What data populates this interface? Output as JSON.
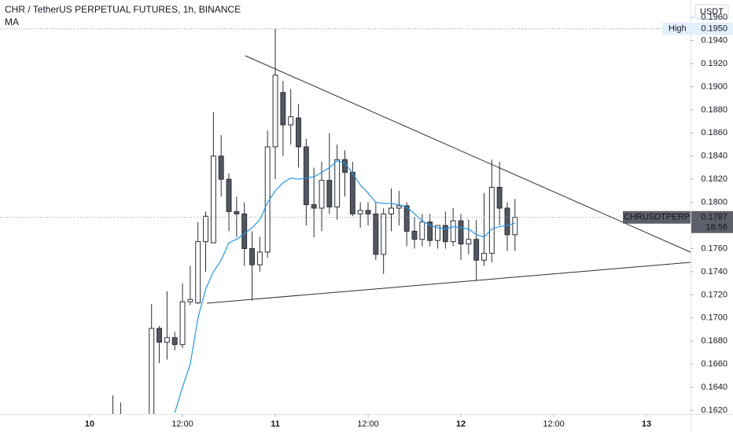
{
  "chart_data": {
    "type": "candlestick",
    "title": "CHR / TetherUS PERPETUAL FUTURES, 1h, BINANCE",
    "currency": "USDT",
    "x": [
      3,
      4,
      8,
      9,
      10,
      11,
      12,
      13,
      14,
      15,
      16,
      17,
      18,
      19,
      20,
      21,
      22,
      23,
      24,
      25,
      26,
      27,
      28,
      29,
      30,
      31,
      32,
      33,
      34,
      35,
      36,
      37,
      38,
      39,
      40,
      41,
      42,
      43,
      44,
      45,
      46,
      47,
      48,
      49,
      50,
      51,
      52,
      53,
      54,
      55
    ],
    "xlim": [
      -11.6,
      77.7
    ],
    "xticks": [
      {
        "value": 0,
        "label": "10"
      },
      {
        "value": 12,
        "label": "12:00"
      },
      {
        "value": 24,
        "label": "11"
      },
      {
        "value": 36,
        "label": "12:00"
      },
      {
        "value": 48,
        "label": "12"
      },
      {
        "value": 60,
        "label": "12:00"
      },
      {
        "value": 72,
        "label": "13"
      }
    ],
    "ylim": [
      0.1617,
      0.1975
    ],
    "yticks": [
      {
        "value": 0.162,
        "label": "0.1620"
      },
      {
        "value": 0.164,
        "label": "0.1640"
      },
      {
        "value": 0.166,
        "label": "0.1660"
      },
      {
        "value": 0.168,
        "label": "0.1680"
      },
      {
        "value": 0.17,
        "label": "0.1700"
      },
      {
        "value": 0.172,
        "label": "0.1720"
      },
      {
        "value": 0.174,
        "label": "0.1740"
      },
      {
        "value": 0.176,
        "label": "0.1760"
      },
      {
        "value": 0.178,
        "label": "0.1780"
      },
      {
        "value": 0.18,
        "label": "0.1800"
      },
      {
        "value": 0.182,
        "label": "0.1820"
      },
      {
        "value": 0.184,
        "label": "0.1840"
      },
      {
        "value": 0.186,
        "label": "0.1860"
      },
      {
        "value": 0.188,
        "label": "0.1880"
      },
      {
        "value": 0.19,
        "label": "0.1900"
      },
      {
        "value": 0.192,
        "label": "0.1920"
      },
      {
        "value": 0.194,
        "label": "0.1940"
      },
      {
        "value": 0.196,
        "label": "0.1960"
      }
    ],
    "series": [
      {
        "name": "CHRUSDTPERP",
        "up_color": "#ffffff",
        "down_color": "#535760",
        "border_color": "#2a2e39",
        "open": [
          0.1612,
          0.1605,
          0.161,
          0.1691,
          0.1679,
          0.1683,
          0.1677,
          0.1714,
          0.1713,
          0.1766,
          0.1765,
          0.184,
          0.182,
          0.1792,
          0.179,
          0.176,
          0.1746,
          0.1757,
          0.1848,
          0.1895,
          0.1867,
          0.1873,
          0.1848,
          0.1798,
          0.1795,
          0.1819,
          0.1796,
          0.1837,
          0.1826,
          0.179,
          0.1793,
          0.179,
          0.1755,
          0.179,
          0.1795,
          0.1797,
          0.1775,
          0.1768,
          0.1783,
          0.1767,
          0.178,
          0.1766,
          0.1784,
          0.1764,
          0.1768,
          0.175,
          0.1756,
          0.1813,
          0.1795,
          0.1772
        ],
        "high": [
          0.1633,
          0.1627,
          0.1712,
          0.1693,
          0.1723,
          0.1688,
          0.173,
          0.1745,
          0.1783,
          0.1792,
          0.1878,
          0.1858,
          0.1825,
          0.1805,
          0.18,
          0.1775,
          0.177,
          0.1862,
          0.195,
          0.1905,
          0.1898,
          0.1885,
          0.1855,
          0.183,
          0.1835,
          0.186,
          0.185,
          0.1845,
          0.1835,
          0.18,
          0.18,
          0.18,
          0.1795,
          0.1812,
          0.181,
          0.18,
          0.1787,
          0.179,
          0.179,
          0.178,
          0.1792,
          0.1795,
          0.179,
          0.1785,
          0.1785,
          0.1808,
          0.1837,
          0.1835,
          0.18,
          0.1803
        ],
        "low": [
          0.16,
          0.1598,
          0.1605,
          0.1661,
          0.1664,
          0.1672,
          0.1674,
          0.1711,
          0.1712,
          0.174,
          0.1765,
          0.1805,
          0.1775,
          0.177,
          0.1745,
          0.1715,
          0.174,
          0.1752,
          0.182,
          0.184,
          0.185,
          0.183,
          0.178,
          0.177,
          0.1775,
          0.179,
          0.1785,
          0.1805,
          0.1788,
          0.1778,
          0.178,
          0.175,
          0.1738,
          0.1775,
          0.178,
          0.1762,
          0.176,
          0.1762,
          0.1762,
          0.176,
          0.176,
          0.1762,
          0.175,
          0.1755,
          0.1732,
          0.1745,
          0.1748,
          0.178,
          0.1758,
          0.1758
        ],
        "close": [
          0.1605,
          0.16,
          0.1691,
          0.1679,
          0.1683,
          0.1677,
          0.1714,
          0.1716,
          0.1766,
          0.1788,
          0.184,
          0.182,
          0.1792,
          0.179,
          0.176,
          0.1746,
          0.1757,
          0.1848,
          0.191,
          0.1867,
          0.1874,
          0.1848,
          0.1798,
          0.1795,
          0.1819,
          0.1796,
          0.1837,
          0.1826,
          0.179,
          0.1793,
          0.179,
          0.1755,
          0.179,
          0.1795,
          0.1797,
          0.1775,
          0.1768,
          0.1783,
          0.1767,
          0.178,
          0.1766,
          0.1784,
          0.1764,
          0.1768,
          0.175,
          0.1756,
          0.1813,
          0.1795,
          0.1772,
          0.1787
        ]
      },
      {
        "name": "MA",
        "type": "line",
        "color": "#2196f3",
        "x": [
          11,
          12,
          13,
          14,
          15,
          16,
          17,
          18,
          19,
          20,
          21,
          22,
          23,
          24,
          25,
          26,
          27,
          28,
          29,
          30,
          31,
          32,
          33,
          34,
          35,
          36,
          37,
          38,
          39,
          40,
          41,
          42,
          43,
          44,
          45,
          46,
          47,
          48,
          49,
          50,
          51,
          52,
          53,
          54,
          55
        ],
        "values": [
          0.1618,
          0.164,
          0.166,
          0.17,
          0.1725,
          0.174,
          0.175,
          0.1765,
          0.1768,
          0.1773,
          0.1778,
          0.1785,
          0.18,
          0.181,
          0.1817,
          0.1821,
          0.182,
          0.1821,
          0.1822,
          0.1826,
          0.183,
          0.1836,
          0.1834,
          0.1825,
          0.1815,
          0.1808,
          0.18,
          0.1799,
          0.1799,
          0.1798,
          0.1796,
          0.179,
          0.1784,
          0.178,
          0.1778,
          0.1777,
          0.1779,
          0.1778,
          0.1777,
          0.1772,
          0.177,
          0.1777,
          0.1779,
          0.178,
          0.1782
        ]
      }
    ],
    "high_marker": {
      "name": "High",
      "value": 0.195,
      "value_label": "0.1950"
    },
    "countdown": "18:56"
  }
}
